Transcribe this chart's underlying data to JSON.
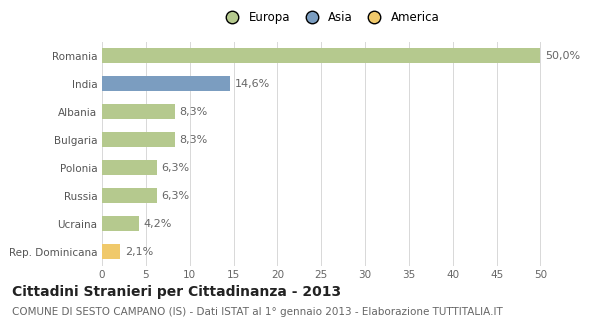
{
  "categories": [
    "Romania",
    "India",
    "Albania",
    "Bulgaria",
    "Polonia",
    "Russia",
    "Ucraina",
    "Rep. Dominicana"
  ],
  "values": [
    50.0,
    14.6,
    8.3,
    8.3,
    6.3,
    6.3,
    4.2,
    2.1
  ],
  "labels": [
    "50,0%",
    "14,6%",
    "8,3%",
    "8,3%",
    "6,3%",
    "6,3%",
    "4,2%",
    "2,1%"
  ],
  "bar_colors": [
    "#b5c98e",
    "#7b9dc0",
    "#b5c98e",
    "#b5c98e",
    "#b5c98e",
    "#b5c98e",
    "#b5c98e",
    "#f0c96b"
  ],
  "legend_labels": [
    "Europa",
    "Asia",
    "America"
  ],
  "legend_colors": [
    "#b5c98e",
    "#7b9dc0",
    "#f0c96b"
  ],
  "xlim": [
    0,
    52
  ],
  "xticks": [
    0,
    5,
    10,
    15,
    20,
    25,
    30,
    35,
    40,
    45,
    50
  ],
  "title": "Cittadini Stranieri per Cittadinanza - 2013",
  "subtitle": "COMUNE DI SESTO CAMPANO (IS) - Dati ISTAT al 1° gennaio 2013 - Elaborazione TUTTITALIA.IT",
  "background_color": "#ffffff",
  "grid_color": "#d8d8d8",
  "bar_height": 0.55,
  "title_fontsize": 10,
  "subtitle_fontsize": 7.5,
  "label_fontsize": 8,
  "tick_fontsize": 7.5,
  "legend_fontsize": 8.5
}
